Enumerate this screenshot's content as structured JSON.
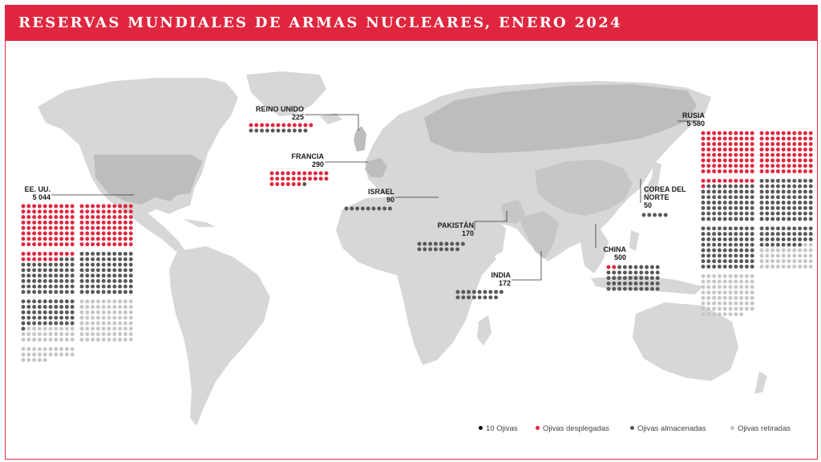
{
  "title": "RESERVAS MUNDIALES DE ARMAS NUCLEARES, ENERO 2024",
  "colors": {
    "accent": "#e0263e",
    "deployed": "#e0263e",
    "stored": "#585858",
    "retired": "#c6c6c6",
    "land": "#d7d7d7",
    "land_highlight": "#bdbdbd"
  },
  "legend": {
    "unit": "10 Ojivas",
    "deployed": "Ojivas desplegadas",
    "stored": "Ojivas almacenadas",
    "retired": "Ojivas retiradas"
  },
  "chart_data": {
    "type": "dot-matrix map",
    "title": "RESERVAS MUNDIALES DE ARMAS NUCLEARES, ENERO 2024",
    "unit": "1 punto = 10 ojivas",
    "categories": [
      "deployed",
      "stored",
      "retired"
    ],
    "countries": [
      {
        "name_lines": [
          "EE. UU."
        ],
        "total_label": "5 044",
        "total": 5044,
        "deployed": 1770,
        "stored": 1938,
        "retired": 1336
      },
      {
        "name_lines": [
          "REINO UNIDO"
        ],
        "total_label": "225",
        "total": 225,
        "deployed": 120,
        "stored": 105,
        "retired": 0
      },
      {
        "name_lines": [
          "FRANCIA"
        ],
        "total_label": "290",
        "total": 290,
        "deployed": 280,
        "stored": 10,
        "retired": 0
      },
      {
        "name_lines": [
          "ISRAEL"
        ],
        "total_label": "90",
        "total": 90,
        "deployed": 0,
        "stored": 90,
        "retired": 0
      },
      {
        "name_lines": [
          "PAKISTÁN"
        ],
        "total_label": "170",
        "total": 170,
        "deployed": 0,
        "stored": 170,
        "retired": 0
      },
      {
        "name_lines": [
          "INDIA"
        ],
        "total_label": "172",
        "total": 172,
        "deployed": 0,
        "stored": 172,
        "retired": 0
      },
      {
        "name_lines": [
          "CHINA"
        ],
        "total_label": "500",
        "total": 500,
        "deployed": 24,
        "stored": 476,
        "retired": 0
      },
      {
        "name_lines": [
          "COREA DEL",
          "NORTE"
        ],
        "total_label": "50",
        "total": 50,
        "deployed": 0,
        "stored": 50,
        "retired": 0
      },
      {
        "name_lines": [
          "RUSIA"
        ],
        "total_label": "5 580",
        "total": 5580,
        "deployed": 1710,
        "stored": 2670,
        "retired": 1200
      }
    ]
  }
}
